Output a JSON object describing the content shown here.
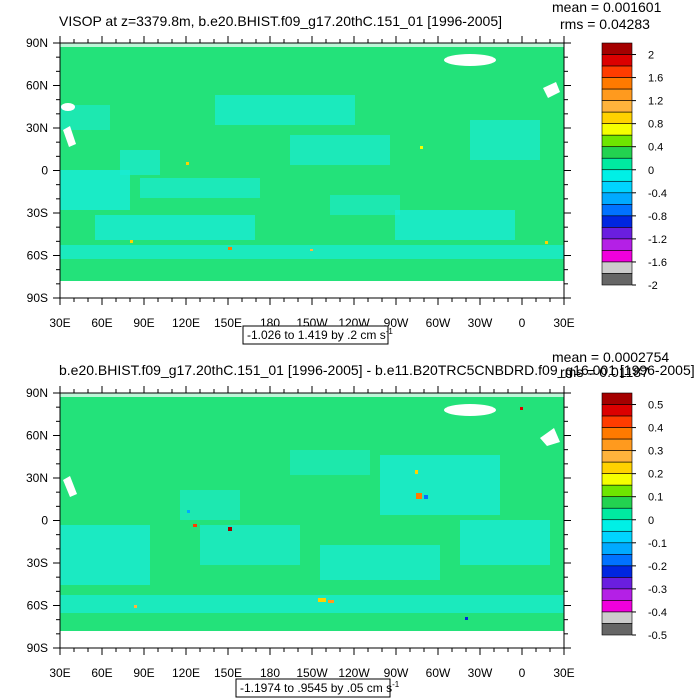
{
  "chart_data": [
    {
      "type": "heatmap",
      "title": "VISOP at z=3379.8m, b.e20.BHIST.f09_g17.20thC.151_01 [1996-2005]",
      "stats": {
        "mean": "mean = 0.001601",
        "rms": "rms = 0.04283"
      },
      "ylabels": [
        "90N",
        "60N",
        "30N",
        "0",
        "30S",
        "60S",
        "90S"
      ],
      "xlabels": [
        "30E",
        "60E",
        "90E",
        "120E",
        "150E",
        "180",
        "150W",
        "120W",
        "90W",
        "60W",
        "30W",
        "0",
        "30E"
      ],
      "lat_range": [
        -90,
        90
      ],
      "lon_ticks_deg": [
        30,
        60,
        90,
        120,
        150,
        180,
        210,
        240,
        270,
        300,
        330,
        360,
        390
      ],
      "range_label": "-1.026 to 1.419 by .2 cm s",
      "range_units_sup": "-1",
      "colorbar_labels": [
        "2",
        "1.6",
        "1.2",
        "0.8",
        "0.4",
        "0",
        "-0.4",
        "-0.8",
        "-1.2",
        "-1.6",
        "-2"
      ],
      "colorbar_colors": [
        "#a50000",
        "#dc0000",
        "#ff3c00",
        "#ff7a00",
        "#ff9a1e",
        "#ffb33c",
        "#ffd200",
        "#f5ff00",
        "#6ee600",
        "#23d250",
        "#00eaa0",
        "#00f0e6",
        "#00d4ff",
        "#00aaff",
        "#0072ff",
        "#0026e0",
        "#6a1ee0",
        "#b420e6",
        "#f000dc",
        "#cccccc",
        "#666666"
      ]
    },
    {
      "type": "heatmap",
      "title": "b.e20.BHIST.f09_g17.20thC.151_01 [1996-2005] - b.e11.B20TRC5CNBDRD.f09_g16.001 [1996-2005]",
      "stats": {
        "mean": "mean = 0.0002754",
        "rms": "rms = 0.01187"
      },
      "ylabels": [
        "90N",
        "60N",
        "30N",
        "0",
        "30S",
        "60S",
        "90S"
      ],
      "xlabels": [
        "30E",
        "60E",
        "90E",
        "120E",
        "150E",
        "180",
        "150W",
        "120W",
        "90W",
        "60W",
        "30W",
        "0",
        "30E"
      ],
      "lat_range": [
        -90,
        90
      ],
      "lon_ticks_deg": [
        30,
        60,
        90,
        120,
        150,
        180,
        210,
        240,
        270,
        300,
        330,
        360,
        390
      ],
      "range_label": "-1.1974 to .9545 by .05 cm s",
      "range_units_sup": "-1",
      "colorbar_labels": [
        "0.5",
        "0.4",
        "0.3",
        "0.2",
        "0.1",
        "0",
        "-0.1",
        "-0.2",
        "-0.3",
        "-0.4",
        "-0.5"
      ],
      "colorbar_colors": [
        "#a50000",
        "#dc0000",
        "#ff3c00",
        "#ff7a00",
        "#ff9a1e",
        "#ffb33c",
        "#ffd200",
        "#f5ff00",
        "#6ee600",
        "#23d250",
        "#00eaa0",
        "#00f0e6",
        "#00d4ff",
        "#00aaff",
        "#0072ff",
        "#0026e0",
        "#6a1ee0",
        "#b420e6",
        "#f000dc",
        "#cccccc",
        "#666666"
      ]
    }
  ]
}
